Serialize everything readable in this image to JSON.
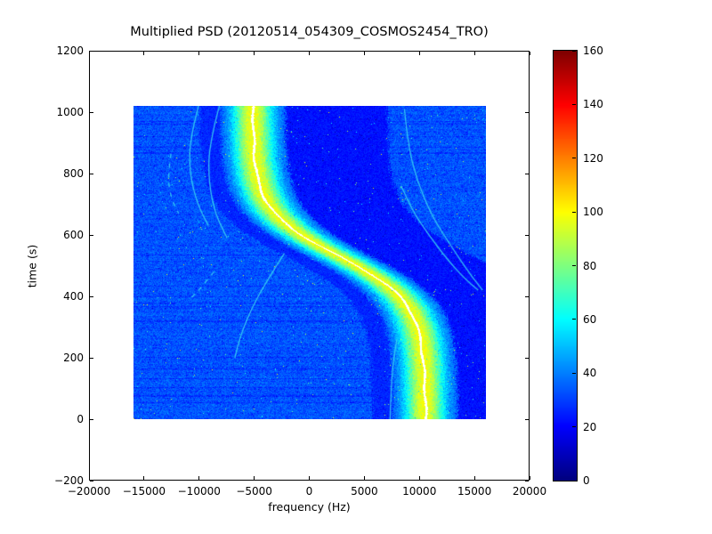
{
  "chart_data": {
    "type": "heatmap",
    "title": "Multiplied PSD (20120514_054309_COSMOS2454_TRO)",
    "xlabel": "frequency (Hz)",
    "ylabel": "time (s)",
    "xlim": [
      -20000,
      20000
    ],
    "ylim": [
      -200,
      1200
    ],
    "xticks": [
      -20000,
      -15000,
      -10000,
      -5000,
      0,
      5000,
      10000,
      15000,
      20000
    ],
    "yticks": [
      -200,
      0,
      200,
      400,
      600,
      800,
      1000,
      1200
    ],
    "grid": false,
    "colormap": "jet",
    "data_extent": {
      "x": [
        -16000,
        16000
      ],
      "y": [
        0,
        1020
      ]
    },
    "colorbar": {
      "vmin": 0,
      "vmax": 160,
      "ticks": [
        0,
        20,
        40,
        60,
        80,
        100,
        120,
        140,
        160
      ],
      "position": "right"
    },
    "background_value": 33,
    "dark_zone_value": 22.5,
    "doppler_track": {
      "description": "S-shaped Doppler ridge of satellite pass; bright band with thin white centre line",
      "f_offset_hz": 2650,
      "amplitude_hz": 7850,
      "t_mid_s": 530,
      "tau_s": 150,
      "band_sigma_hz": 1800,
      "peak_value": 99,
      "white_line_halfwidth_hz": 110,
      "ridge_samples": [
        [
          0,
          10490
        ],
        [
          200,
          10310
        ],
        [
          400,
          8150
        ],
        [
          500,
          4200
        ],
        [
          530,
          2650
        ],
        [
          600,
          -770
        ],
        [
          700,
          -3730
        ],
        [
          800,
          -4780
        ],
        [
          900,
          -5100
        ],
        [
          1020,
          -5170
        ]
      ]
    },
    "alias_curves": [
      {
        "points": [
          [
            1020,
            -8200
          ],
          [
            900,
            -9100
          ],
          [
            780,
            -9200
          ],
          [
            670,
            -8600
          ],
          [
            590,
            -7500
          ]
        ],
        "dashed": false
      },
      {
        "points": [
          [
            1020,
            -10100
          ],
          [
            910,
            -10900
          ],
          [
            800,
            -10900
          ],
          [
            700,
            -10200
          ],
          [
            630,
            -9200
          ]
        ],
        "dashed": false
      },
      {
        "points": [
          [
            865,
            -12600
          ],
          [
            790,
            -12900
          ],
          [
            720,
            -12600
          ],
          [
            670,
            -11900
          ]
        ],
        "dashed": true
      },
      {
        "points": [
          [
            1010,
            8600
          ],
          [
            900,
            8900
          ],
          [
            780,
            9700
          ],
          [
            660,
            11100
          ],
          [
            560,
            12900
          ],
          [
            470,
            14600
          ],
          [
            420,
            15700
          ]
        ],
        "dashed": false
      },
      {
        "points": [
          [
            760,
            8300
          ],
          [
            680,
            9300
          ],
          [
            600,
            10800
          ],
          [
            520,
            12500
          ],
          [
            460,
            14000
          ],
          [
            420,
            15300
          ]
        ],
        "dashed": false
      },
      {
        "points": [
          [
            540,
            -2300
          ],
          [
            450,
            -3900
          ],
          [
            360,
            -5300
          ],
          [
            270,
            -6300
          ],
          [
            200,
            -6800
          ]
        ],
        "dashed": false
      },
      {
        "points": [
          [
            480,
            -8700
          ],
          [
            430,
            -9800
          ],
          [
            390,
            -10900
          ]
        ],
        "dashed": true
      },
      {
        "points": [
          [
            0,
            7300
          ],
          [
            140,
            7400
          ],
          [
            260,
            7900
          ]
        ],
        "dashed": false
      }
    ],
    "frame_color": "#000000",
    "background_color": "#ffffff"
  }
}
